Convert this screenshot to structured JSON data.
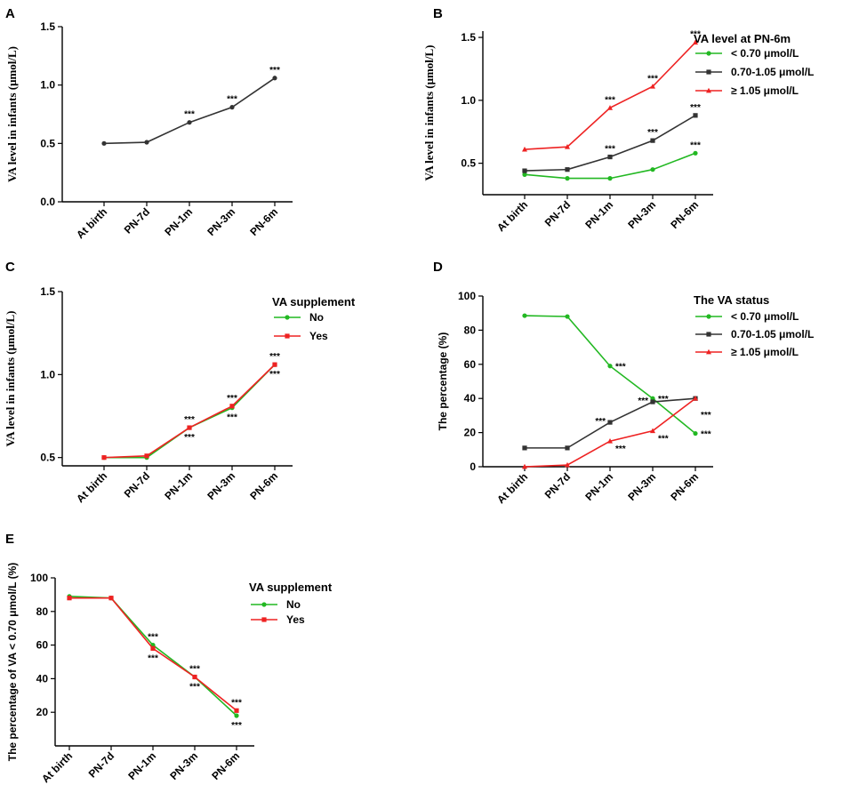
{
  "chart_data": [
    {
      "panel": "A",
      "type": "line",
      "categories": [
        "At birth",
        "PN-7d",
        "PN-1m",
        "PN-3m",
        "PN-6m"
      ],
      "ylabel": "VA level in infants (μmol/L)",
      "ylim": [
        0,
        1.5
      ],
      "yticks": [
        "0.0",
        "0.5",
        "1.0",
        "1.5"
      ],
      "series": [
        {
          "name": "",
          "color": "#333333",
          "marker": "circle",
          "values": [
            0.5,
            0.51,
            0.68,
            0.81,
            1.06
          ]
        }
      ],
      "annotations": [
        {
          "series": 0,
          "index": 2,
          "text": "***",
          "pos": "above"
        },
        {
          "series": 0,
          "index": 3,
          "text": "***",
          "pos": "above"
        },
        {
          "series": 0,
          "index": 4,
          "text": "***",
          "pos": "above"
        }
      ]
    },
    {
      "panel": "B",
      "type": "line",
      "categories": [
        "At birth",
        "PN-7d",
        "PN-1m",
        "PN-3m",
        "PN-6m"
      ],
      "ylabel": "VA level in infants (μmol/L)",
      "ylim": [
        0.25,
        1.55
      ],
      "yticks": [
        "0.5",
        "1.0",
        "1.5"
      ],
      "legend_title": "VA level at PN-6m",
      "series": [
        {
          "name": "< 0.70  μmol/L",
          "color": "#22b822",
          "marker": "circle",
          "values": [
            0.41,
            0.38,
            0.38,
            0.45,
            0.58
          ]
        },
        {
          "name": "0.70-1.05  μmol/L",
          "color": "#333333",
          "marker": "square",
          "values": [
            0.44,
            0.45,
            0.55,
            0.68,
            0.88
          ]
        },
        {
          "name": "≥  1.05  μmol/L",
          "color": "#ee2222",
          "marker": "triangle",
          "values": [
            0.61,
            0.63,
            0.94,
            1.11,
            1.46
          ]
        }
      ],
      "annotations": [
        {
          "series": 0,
          "index": 4,
          "text": "***",
          "pos": "above"
        },
        {
          "series": 1,
          "index": 2,
          "text": "***",
          "pos": "above"
        },
        {
          "series": 1,
          "index": 3,
          "text": "***",
          "pos": "above"
        },
        {
          "series": 1,
          "index": 4,
          "text": "***",
          "pos": "above"
        },
        {
          "series": 2,
          "index": 2,
          "text": "***",
          "pos": "above"
        },
        {
          "series": 2,
          "index": 3,
          "text": "***",
          "pos": "above"
        },
        {
          "series": 2,
          "index": 4,
          "text": "***",
          "pos": "above"
        }
      ]
    },
    {
      "panel": "C",
      "type": "line",
      "categories": [
        "At birth",
        "PN-7d",
        "PN-1m",
        "PN-3m",
        "PN-6m"
      ],
      "ylabel": "VA level in infants (μmol/L)",
      "ylim": [
        0.45,
        1.5
      ],
      "yticks": [
        "0.5",
        "1.0",
        "1.5"
      ],
      "legend_title": "VA supplement",
      "series": [
        {
          "name": "No",
          "color": "#22b822",
          "marker": "circle",
          "values": [
            0.5,
            0.5,
            0.68,
            0.8,
            1.06
          ]
        },
        {
          "name": "Yes",
          "color": "#ee2222",
          "marker": "square",
          "values": [
            0.5,
            0.51,
            0.68,
            0.81,
            1.06
          ]
        }
      ],
      "annotations": [
        {
          "series": 1,
          "index": 2,
          "text": "***",
          "pos": "above"
        },
        {
          "series": 0,
          "index": 2,
          "text": "***",
          "pos": "below"
        },
        {
          "series": 1,
          "index": 3,
          "text": "***",
          "pos": "above"
        },
        {
          "series": 0,
          "index": 3,
          "text": "***",
          "pos": "below"
        },
        {
          "series": 1,
          "index": 4,
          "text": "***",
          "pos": "above"
        },
        {
          "series": 0,
          "index": 4,
          "text": "***",
          "pos": "below"
        }
      ]
    },
    {
      "panel": "D",
      "type": "line",
      "categories": [
        "At birth",
        "PN-7d",
        "PN-1m",
        "PN-3m",
        "PN-6m"
      ],
      "ylabel": "The percentage (%)",
      "ylim": [
        0,
        100
      ],
      "yticks": [
        "0",
        "20",
        "40",
        "60",
        "80",
        "100"
      ],
      "legend_title": "The VA status",
      "series": [
        {
          "name": "< 0.70  μmol/L",
          "color": "#22b822",
          "marker": "circle",
          "values": [
            88.5,
            88,
            59,
            40,
            19.5
          ]
        },
        {
          "name": "0.70-1.05  μmol/L",
          "color": "#333333",
          "marker": "square",
          "values": [
            11,
            11,
            26,
            38,
            40
          ]
        },
        {
          "name": "≥  1.05  μmol/L",
          "color": "#ee2222",
          "marker": "triangle",
          "values": [
            0,
            1,
            15,
            21,
            40
          ]
        }
      ],
      "annotations": [
        {
          "series": 0,
          "index": 2,
          "text": "***",
          "pos": "right"
        },
        {
          "series": 1,
          "index": 2,
          "text": "***",
          "pos": "left"
        },
        {
          "series": 2,
          "index": 2,
          "text": "***",
          "pos": "right-low"
        },
        {
          "series": 0,
          "index": 3,
          "text": "***",
          "pos": "right"
        },
        {
          "series": 1,
          "index": 3,
          "text": "***",
          "pos": "left"
        },
        {
          "series": 2,
          "index": 3,
          "text": "***",
          "pos": "right-low"
        },
        {
          "series": 2,
          "index": 4,
          "text": "***",
          "pos": "right-mid"
        },
        {
          "series": 0,
          "index": 4,
          "text": "***",
          "pos": "right"
        }
      ]
    },
    {
      "panel": "E",
      "type": "line",
      "categories": [
        "At birth",
        "PN-7d",
        "PN-1m",
        "PN-3m",
        "PN-6m"
      ],
      "ylabel": "The percentage of VA < 0.70  μmol/L (%)",
      "ylim": [
        0,
        100
      ],
      "yticks": [
        "20",
        "40",
        "60",
        "80",
        "100"
      ],
      "legend_title": "VA supplement",
      "series": [
        {
          "name": "No",
          "color": "#22b822",
          "marker": "circle",
          "values": [
            89,
            88,
            60,
            41,
            18
          ]
        },
        {
          "name": "Yes",
          "color": "#ee2222",
          "marker": "square",
          "values": [
            88,
            88,
            58,
            41,
            21
          ]
        }
      ],
      "annotations": [
        {
          "series": 0,
          "index": 2,
          "text": "***",
          "pos": "above"
        },
        {
          "series": 1,
          "index": 2,
          "text": "***",
          "pos": "below"
        },
        {
          "series": 1,
          "index": 3,
          "text": "***",
          "pos": "above"
        },
        {
          "series": 0,
          "index": 3,
          "text": "***",
          "pos": "below"
        },
        {
          "series": 1,
          "index": 4,
          "text": "***",
          "pos": "above"
        },
        {
          "series": 0,
          "index": 4,
          "text": "***",
          "pos": "below"
        }
      ]
    }
  ]
}
